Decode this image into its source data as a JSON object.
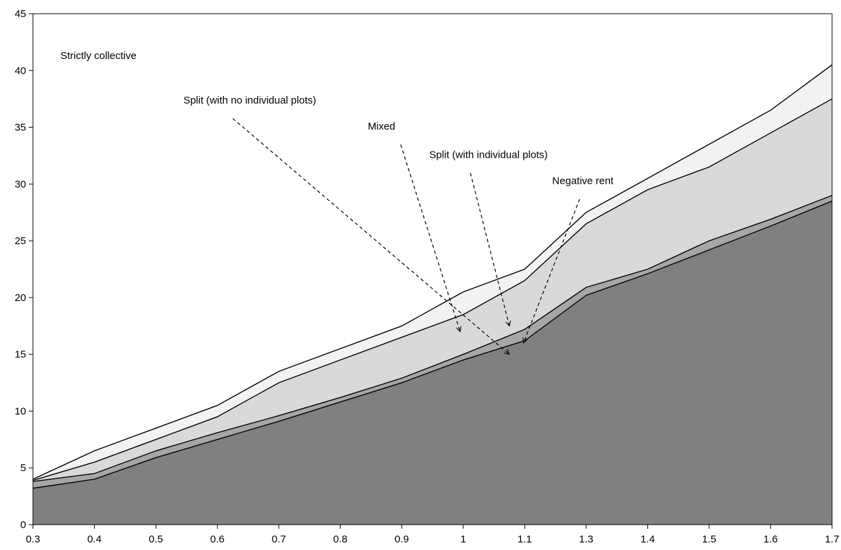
{
  "chart_data": {
    "type": "area",
    "title": "",
    "xlabel": "",
    "ylabel": "",
    "categories": [
      "0.3",
      "0.4",
      "0.5",
      "0.6",
      "0.7",
      "0.8",
      "0.9",
      "1",
      "1.1",
      "1.3",
      "1.4",
      "1.5",
      "1.6",
      "1.7"
    ],
    "ylim": [
      0,
      45
    ],
    "yticks": [
      0,
      5,
      10,
      15,
      20,
      25,
      30,
      35,
      40,
      45
    ],
    "grid": false,
    "legend": "none",
    "boundaries": [
      {
        "values": [
          3.2,
          4.0,
          5.9,
          7.5,
          9.1,
          10.8,
          12.5,
          14.5,
          16.2,
          20.2,
          22.1,
          24.2,
          26.3,
          28.5
        ]
      },
      {
        "values": [
          3.8,
          4.5,
          6.5,
          8.1,
          9.6,
          11.2,
          12.9,
          15.0,
          17.2,
          20.9,
          22.5,
          25.0,
          26.9,
          29.0
        ]
      },
      {
        "values": [
          3.9,
          5.5,
          7.5,
          9.5,
          12.5,
          14.5,
          16.5,
          18.5,
          21.5,
          26.5,
          29.5,
          31.5,
          34.5,
          37.5
        ]
      },
      {
        "values": [
          4.0,
          6.5,
          8.5,
          10.5,
          13.5,
          15.5,
          17.5,
          20.5,
          22.5,
          27.5,
          30.5,
          33.5,
          36.5,
          40.5
        ]
      }
    ],
    "fills": [
      "#808080",
      "#a6a6a6",
      "#d9d9d9",
      "#f2f2f2"
    ],
    "annotations": [
      {
        "text": "Strictly collective",
        "x": "0.3",
        "y": 41.0,
        "arrow": false
      },
      {
        "text": "Split (with no individual plots)",
        "x": "0.5",
        "y": 37.1,
        "arrow": true,
        "arrow_to": {
          "x": 7.75,
          "y": 15.0
        }
      },
      {
        "text": "Mixed",
        "x": "0.8",
        "y": 34.8,
        "arrow": true,
        "arrow_to": {
          "x": 6.95,
          "y": 17.0
        }
      },
      {
        "text": "Split (with individual plots)",
        "x": "0.9",
        "y": 32.3,
        "arrow": true,
        "arrow_to": {
          "x": 7.75,
          "y": 17.5
        }
      },
      {
        "text": "Negative rent",
        "x": "1.1",
        "y": 30.0,
        "arrow": true,
        "arrow_to": {
          "x": 7.98,
          "y": 16.0
        }
      }
    ]
  }
}
